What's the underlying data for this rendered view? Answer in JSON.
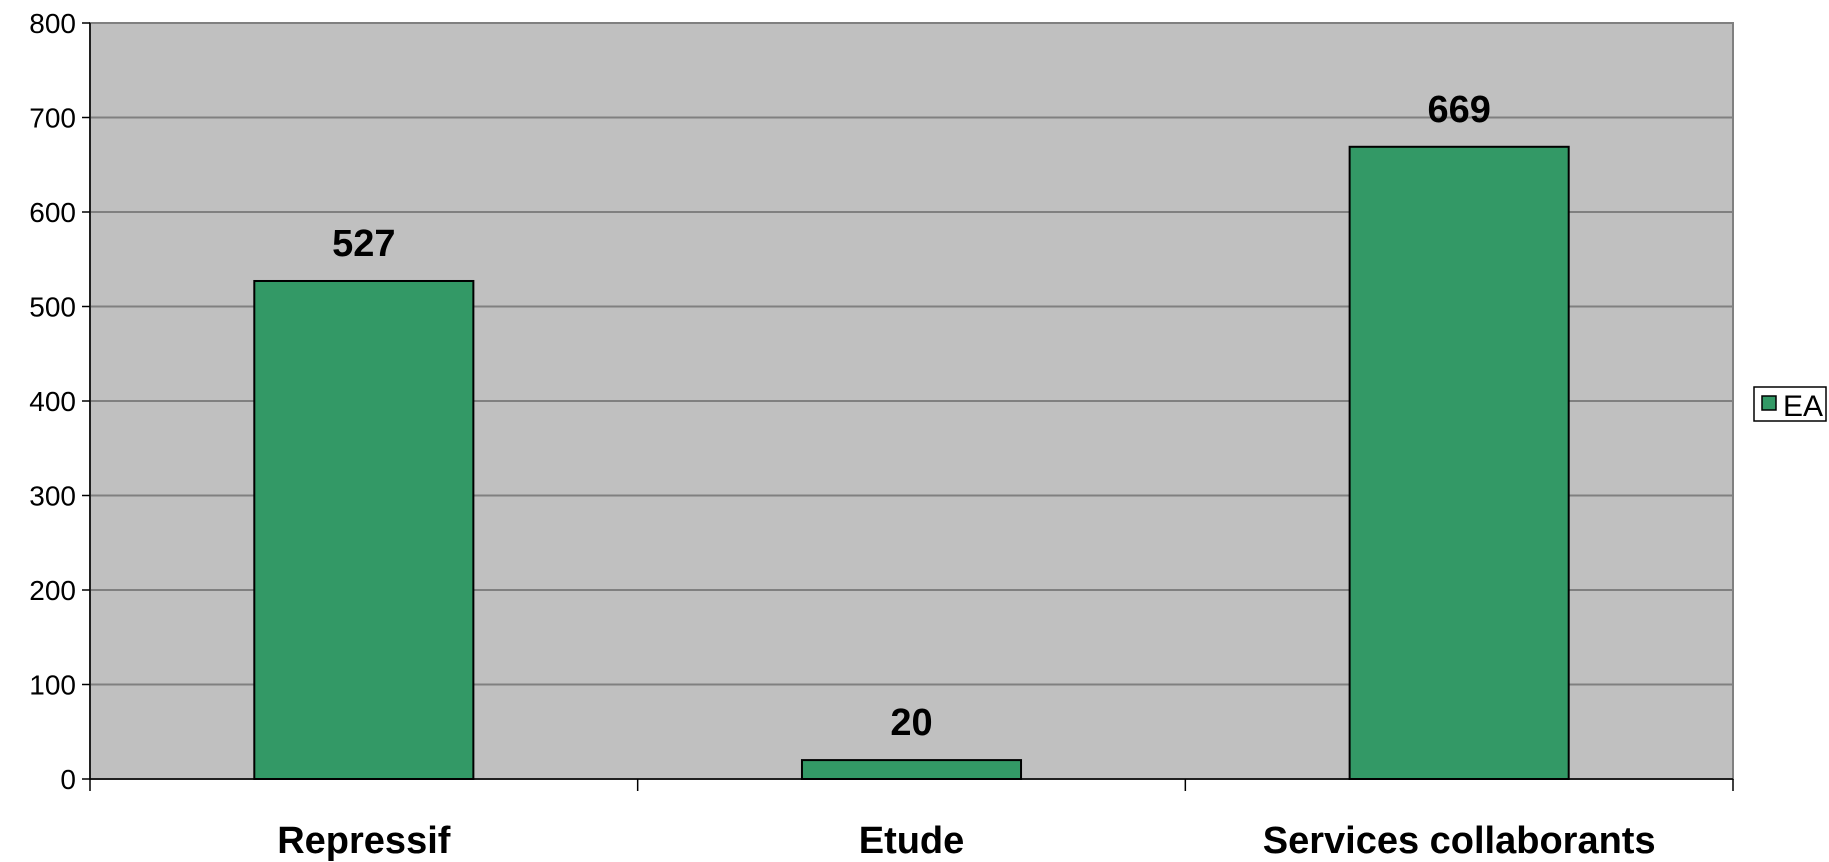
{
  "chart_data": {
    "type": "bar",
    "categories": [
      "Repressif",
      "Etude",
      "Services collaborants"
    ],
    "series": [
      {
        "name": "EA",
        "values": [
          527,
          20,
          669
        ]
      }
    ],
    "data_labels": [
      "527",
      "20",
      "669"
    ],
    "ylim": [
      0,
      800
    ],
    "yticks": [
      0,
      100,
      200,
      300,
      400,
      500,
      600,
      700,
      800
    ],
    "ytick_labels": [
      "0",
      "100",
      "200",
      "300",
      "400",
      "500",
      "600",
      "700",
      "800"
    ],
    "grid": true,
    "legend": "right",
    "colors": {
      "bar": "#339966",
      "plot_background": "#c0c0c0",
      "gridline": "#808080"
    }
  }
}
